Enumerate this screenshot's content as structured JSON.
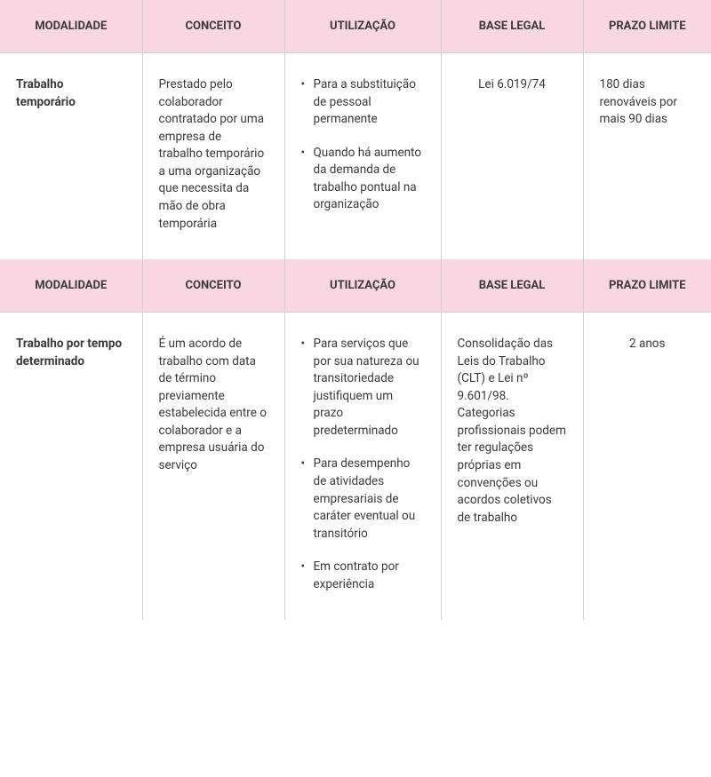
{
  "colors": {
    "header_bg": "#f8d7e3",
    "border": "#d0d0d0",
    "text": "#3a3a3a",
    "background": "#ffffff"
  },
  "columns": [
    {
      "label": "MODALIDADE"
    },
    {
      "label": "CONCEITO"
    },
    {
      "label": "UTILIZAÇÃO"
    },
    {
      "label": "BASE LEGAL"
    },
    {
      "label": "PRAZO LIMITE"
    }
  ],
  "sections": [
    {
      "modalidade": "Trabalho temporário",
      "conceito": "Prestado pelo colaborador contratado por uma empresa de trabalho temporário a uma organização que necessita da mão de obra temporária",
      "utilizacao": [
        "Para a substituição de pessoal permanente",
        "Quando há aumento da demanda de trabalho pontual na organização"
      ],
      "base_legal": "Lei 6.019/74",
      "prazo_limite": "180 dias renováveis por mais 90 dias"
    },
    {
      "modalidade": "Trabalho por tempo determinado",
      "conceito": "É um acordo de trabalho com data de término previamente estabelecida entre o colaborador e a empresa usuária do serviço",
      "utilizacao": [
        "Para serviços que por sua natureza ou transitoriedade justifiquem um prazo predeterminado",
        "Para desempenho de atividades empresariais de caráter eventual ou transitório",
        "Em contrato por experiência"
      ],
      "base_legal": "Consolidação das Leis do Trabalho (CLT) e Lei nº 9.601/98. Categorias profissionais  podem ter regulações próprias em convenções ou acordos coletivos de trabalho",
      "prazo_limite": "2 anos"
    }
  ]
}
